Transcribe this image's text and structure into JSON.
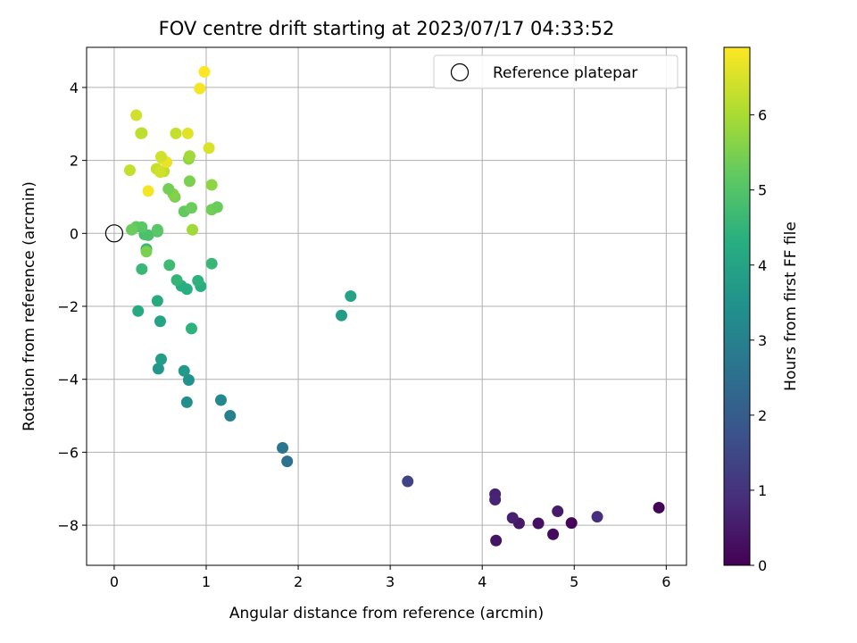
{
  "chart_data": {
    "type": "scatter",
    "title": "FOV centre drift starting at 2023/07/17 04:33:52",
    "xlabel": "Angular distance from reference (arcmin)",
    "ylabel": "Rotation from reference (arcmin)",
    "xlim": [
      -0.3,
      6.22
    ],
    "ylim": [
      -9.1,
      5.1
    ],
    "xticks": [
      0,
      1,
      2,
      3,
      4,
      5,
      6
    ],
    "yticks": [
      -8,
      -6,
      -4,
      -2,
      0,
      2,
      4
    ],
    "grid": true,
    "legend": {
      "position": "top-right",
      "entries": [
        "Reference platepar"
      ]
    },
    "reference_point": {
      "x": 0,
      "y": 0,
      "name": "Reference platepar"
    },
    "colorbar": {
      "label": "Hours from first FF file",
      "range": [
        0,
        6.9
      ],
      "ticks": [
        0,
        1,
        2,
        3,
        4,
        5,
        6
      ],
      "colormap": "viridis"
    },
    "series": [
      {
        "points": [
          {
            "x": 5.92,
            "y": -7.52,
            "c": 0.05
          },
          {
            "x": 4.97,
            "y": -7.94,
            "c": 0.1
          },
          {
            "x": 4.77,
            "y": -8.25,
            "c": 0.2
          },
          {
            "x": 4.61,
            "y": -7.95,
            "c": 0.3
          },
          {
            "x": 4.15,
            "y": -8.42,
            "c": 0.35
          },
          {
            "x": 4.4,
            "y": -7.95,
            "c": 0.45
          },
          {
            "x": 4.82,
            "y": -7.62,
            "c": 0.5
          },
          {
            "x": 4.33,
            "y": -7.8,
            "c": 0.6
          },
          {
            "x": 4.14,
            "y": -7.15,
            "c": 0.65
          },
          {
            "x": 4.14,
            "y": -7.3,
            "c": 0.7
          },
          {
            "x": 5.25,
            "y": -7.77,
            "c": 0.9
          },
          {
            "x": 3.19,
            "y": -6.8,
            "c": 1.4
          },
          {
            "x": 1.88,
            "y": -6.25,
            "c": 2.6
          },
          {
            "x": 1.83,
            "y": -5.88,
            "c": 2.7
          },
          {
            "x": 1.26,
            "y": -5.0,
            "c": 3.0
          },
          {
            "x": 1.16,
            "y": -4.57,
            "c": 3.2
          },
          {
            "x": 0.81,
            "y": -4.02,
            "c": 3.5
          },
          {
            "x": 0.79,
            "y": -4.63,
            "c": 3.4
          },
          {
            "x": 0.76,
            "y": -3.77,
            "c": 3.7
          },
          {
            "x": 0.48,
            "y": -3.71,
            "c": 3.6
          },
          {
            "x": 0.51,
            "y": -3.45,
            "c": 3.8
          },
          {
            "x": 2.47,
            "y": -2.25,
            "c": 3.8
          },
          {
            "x": 2.57,
            "y": -1.72,
            "c": 4.0
          },
          {
            "x": 0.5,
            "y": -2.41,
            "c": 4.0
          },
          {
            "x": 0.26,
            "y": -2.13,
            "c": 4.2
          },
          {
            "x": 0.47,
            "y": -1.85,
            "c": 4.2
          },
          {
            "x": 0.84,
            "y": -2.61,
            "c": 4.4
          },
          {
            "x": 0.73,
            "y": -1.44,
            "c": 4.3
          },
          {
            "x": 0.79,
            "y": -1.53,
            "c": 4.3
          },
          {
            "x": 0.94,
            "y": -1.45,
            "c": 4.3
          },
          {
            "x": 0.91,
            "y": -1.3,
            "c": 4.4
          },
          {
            "x": 0.68,
            "y": -1.28,
            "c": 4.5
          },
          {
            "x": 0.3,
            "y": -0.98,
            "c": 4.6
          },
          {
            "x": 0.6,
            "y": -0.87,
            "c": 4.7
          },
          {
            "x": 1.06,
            "y": -0.83,
            "c": 4.6
          },
          {
            "x": 0.35,
            "y": -0.43,
            "c": 4.6
          },
          {
            "x": 0.33,
            "y": -0.03,
            "c": 4.8
          },
          {
            "x": 0.37,
            "y": -0.05,
            "c": 4.9
          },
          {
            "x": 0.47,
            "y": 0.05,
            "c": 5.0
          },
          {
            "x": 0.24,
            "y": 0.18,
            "c": 5.2
          },
          {
            "x": 0.3,
            "y": 0.17,
            "c": 5.1
          },
          {
            "x": 0.19,
            "y": 0.1,
            "c": 5.3
          },
          {
            "x": 0.47,
            "y": 0.1,
            "c": 5.1
          },
          {
            "x": 0.35,
            "y": -0.5,
            "c": 5.5
          },
          {
            "x": 0.76,
            "y": 0.6,
            "c": 5.2
          },
          {
            "x": 0.84,
            "y": 0.7,
            "c": 5.3
          },
          {
            "x": 1.06,
            "y": 0.65,
            "c": 5.4
          },
          {
            "x": 1.12,
            "y": 0.72,
            "c": 5.3
          },
          {
            "x": 0.66,
            "y": 1.0,
            "c": 5.5
          },
          {
            "x": 0.64,
            "y": 1.08,
            "c": 5.6
          },
          {
            "x": 0.59,
            "y": 1.22,
            "c": 5.4
          },
          {
            "x": 0.82,
            "y": 1.43,
            "c": 5.5
          },
          {
            "x": 1.06,
            "y": 1.33,
            "c": 5.7
          },
          {
            "x": 0.85,
            "y": 0.1,
            "c": 5.9
          },
          {
            "x": 0.54,
            "y": 1.7,
            "c": 6.2
          },
          {
            "x": 0.46,
            "y": 1.77,
            "c": 6.3
          },
          {
            "x": 0.5,
            "y": 1.68,
            "c": 6.4
          },
          {
            "x": 0.17,
            "y": 1.73,
            "c": 6.3
          },
          {
            "x": 0.81,
            "y": 2.04,
            "c": 5.7
          },
          {
            "x": 0.82,
            "y": 2.12,
            "c": 5.9
          },
          {
            "x": 0.52,
            "y": 2.05,
            "c": 6.6
          },
          {
            "x": 0.57,
            "y": 1.95,
            "c": 6.7
          },
          {
            "x": 0.51,
            "y": 2.1,
            "c": 6.4
          },
          {
            "x": 1.03,
            "y": 2.34,
            "c": 6.5
          },
          {
            "x": 0.67,
            "y": 2.74,
            "c": 6.3
          },
          {
            "x": 0.8,
            "y": 2.74,
            "c": 6.6
          },
          {
            "x": 0.29,
            "y": 2.74,
            "c": 6.3
          },
          {
            "x": 0.3,
            "y": 2.75,
            "c": 6.2
          },
          {
            "x": 0.24,
            "y": 3.24,
            "c": 6.4
          },
          {
            "x": 0.37,
            "y": 1.16,
            "c": 6.8
          },
          {
            "x": 0.93,
            "y": 3.97,
            "c": 6.8
          },
          {
            "x": 0.98,
            "y": 4.43,
            "c": 6.9
          }
        ]
      }
    ]
  }
}
